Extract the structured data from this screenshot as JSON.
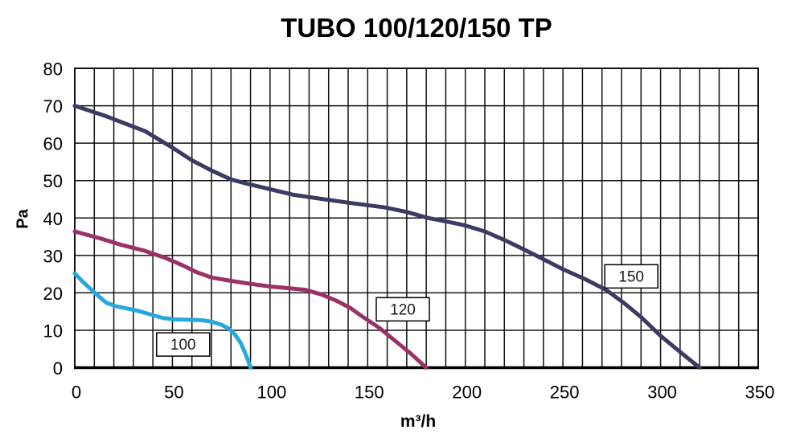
{
  "title": "TUBO 100/120/150 TP",
  "chart_data": {
    "type": "line",
    "title": "TUBO 100/120/150 TP",
    "xlabel": "m³/h",
    "ylabel": "Pa",
    "xlim": [
      0,
      350
    ],
    "ylim": [
      0,
      80
    ],
    "x_major_ticks": [
      0,
      50,
      100,
      150,
      200,
      250,
      300,
      350
    ],
    "y_major_ticks": [
      0,
      10,
      20,
      30,
      40,
      50,
      60,
      70,
      80
    ],
    "x_minor_step": 10,
    "y_minor_step": 10,
    "grid": "on",
    "legend_position": "inline-boxes",
    "grid_color": "#111111",
    "series": [
      {
        "name": "150",
        "color": "#3b3b63",
        "points": [
          [
            0,
            70
          ],
          [
            15,
            67.4
          ],
          [
            25,
            65.4
          ],
          [
            36,
            63.2
          ],
          [
            50,
            58.8
          ],
          [
            60,
            55.4
          ],
          [
            70,
            52.7
          ],
          [
            80,
            50.3
          ],
          [
            88,
            49.2
          ],
          [
            100,
            47.7
          ],
          [
            112,
            46.2
          ],
          [
            125,
            45.2
          ],
          [
            140,
            44.1
          ],
          [
            159,
            42.8
          ],
          [
            170,
            41.6
          ],
          [
            181,
            40
          ],
          [
            192,
            38.9
          ],
          [
            200,
            38
          ],
          [
            210,
            36.4
          ],
          [
            221,
            33.9
          ],
          [
            235,
            30.3
          ],
          [
            250,
            26.3
          ],
          [
            262,
            23.5
          ],
          [
            272,
            20.8
          ],
          [
            281,
            17.4
          ],
          [
            290,
            13.5
          ],
          [
            300,
            8.5
          ],
          [
            310,
            4.2
          ],
          [
            320,
            0
          ]
        ]
      },
      {
        "name": "120",
        "color": "#993366",
        "points": [
          [
            0,
            36.4
          ],
          [
            12,
            34.7
          ],
          [
            24,
            32.8
          ],
          [
            36,
            31.2
          ],
          [
            46,
            29.4
          ],
          [
            55,
            27.4
          ],
          [
            62,
            25.6
          ],
          [
            70,
            24.1
          ],
          [
            80,
            23.2
          ],
          [
            90,
            22.4
          ],
          [
            100,
            21.7
          ],
          [
            110,
            21.2
          ],
          [
            118,
            20.8
          ],
          [
            126,
            19.6
          ],
          [
            134,
            17.9
          ],
          [
            141,
            16
          ],
          [
            148,
            13.4
          ],
          [
            156,
            10.6
          ],
          [
            164,
            7.2
          ],
          [
            172,
            3.8
          ],
          [
            180,
            0
          ]
        ]
      },
      {
        "name": "100",
        "color": "#29a8dc",
        "points": [
          [
            0,
            25.2
          ],
          [
            4,
            23
          ],
          [
            8,
            21.1
          ],
          [
            12,
            19.2
          ],
          [
            16,
            17.4
          ],
          [
            21,
            16.4
          ],
          [
            27,
            15.8
          ],
          [
            33,
            15.1
          ],
          [
            39,
            14.2
          ],
          [
            45,
            13.3
          ],
          [
            51,
            12.9
          ],
          [
            58,
            12.8
          ],
          [
            65,
            12.7
          ],
          [
            70,
            12.3
          ],
          [
            75,
            11.5
          ],
          [
            79,
            10.4
          ],
          [
            82,
            8.9
          ],
          [
            85,
            6.6
          ],
          [
            87,
            4.2
          ],
          [
            89,
            1.6
          ],
          [
            90,
            0
          ]
        ]
      }
    ],
    "annotations": [
      {
        "text": "100",
        "x": 55.5,
        "y": 6.2
      },
      {
        "text": "120",
        "x": 168,
        "y": 15.6
      },
      {
        "text": "150",
        "x": 285,
        "y": 24.4
      }
    ]
  }
}
